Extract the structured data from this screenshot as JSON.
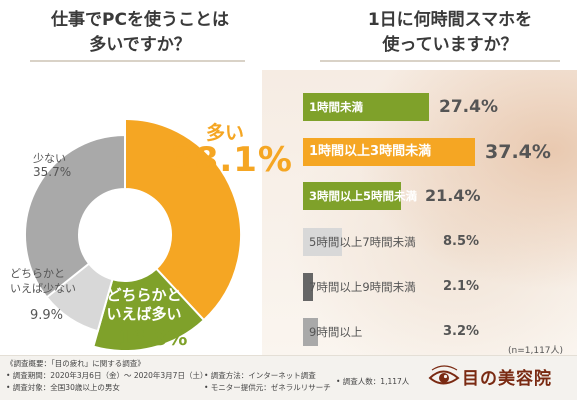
{
  "left_question": {
    "line1": "仕事でPCを使うことは",
    "line2": "多いですか？"
  },
  "right_question": {
    "line1": "1日に何時間スマホを",
    "line2": "使っていますか？"
  },
  "colors": {
    "orange": "#f5a623",
    "green": "#7fa12a",
    "light_gray": "#d8d8d8",
    "gray": "#a9a9a9",
    "dark_gray": "#666666",
    "dark_red": "#7a2a12"
  },
  "chart_data": [
    {
      "type": "pie",
      "title": "仕事でPCを使うことは多いですか？",
      "slices": [
        {
          "label": "多い",
          "value": 38.1,
          "value_text": "38.1%"
        },
        {
          "label": "どちらかといえば多い",
          "label_line1": "どちらかと",
          "label_line2": "いえば多い",
          "value": 16.3,
          "value_text": "16.3%"
        },
        {
          "label": "どちらかといえば少ない",
          "label_line1": "どちらかと",
          "label_line2": "いえば少ない",
          "value": 9.9,
          "value_text": "9.9%"
        },
        {
          "label": "少ない",
          "value": 35.7,
          "value_text": "35.7%"
        }
      ]
    },
    {
      "type": "bar",
      "orientation": "horizontal",
      "title": "1日に何時間スマホを使っていますか？",
      "categories": [
        "1時間未満",
        "1時間以上3時間未満",
        "3時間以上5時間未満",
        "5時間以上7時間未満",
        "7時間以上9時間未満",
        "9時間以上"
      ],
      "values": [
        27.4,
        37.4,
        21.4,
        8.5,
        2.1,
        3.2
      ],
      "value_texts": [
        "27.4%",
        "37.4%",
        "21.4%",
        "8.5%",
        "2.1%",
        "3.2%"
      ],
      "note": "(n=1,117人)"
    }
  ],
  "footer": {
    "heading": "《調査概要：「目の疲れ」に関する調査》",
    "period": "• 調査期間：2020年3月6日（金）～ 2020年3月7日（土）",
    "target": "• 調査対象：全国30歳以上の男女",
    "method": "• 調査方法：インターネット調査",
    "provider": "• モニター提供元：ゼネラルリサーチ",
    "count": "• 調査人数：1,117人",
    "logo_text": "目の美容院"
  }
}
